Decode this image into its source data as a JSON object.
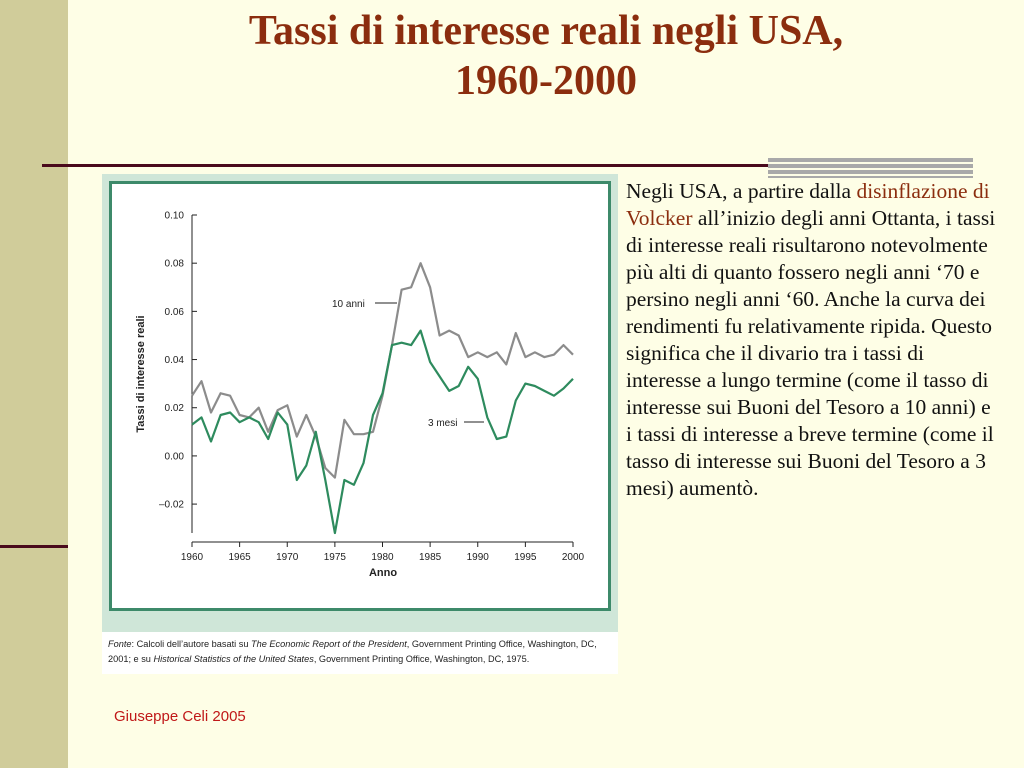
{
  "slide": {
    "title_line1": "Tassi di interesse reali negli USA,",
    "title_line2": "1960-2000",
    "body_pre": "Negli USA, a partire dalla ",
    "body_highlight": "disinflazione di Volcker",
    "body_post": " all’inizio degli anni Ottanta, i tassi di interesse reali risultarono notevolmente più alti di quanto fossero negli anni ‘70 e persino negli anni ‘60. Anche la curva dei rendimenti fu relativamente ripida. Questo significa che il divario tra i tassi di interesse a lungo termine (come il tasso di interesse sui Buoni del Tesoro a 10 anni) e i tassi di interesse a breve termine (come il tasso di interesse sui Buoni del Tesoro a 3 mesi) aumentò.",
    "footer": "Giuseppe Celi  2005",
    "colors": {
      "title": "#8b2d0e",
      "highlight": "#8b2d0e",
      "footer": "#c01818",
      "frame": "#3d8a6a",
      "series_10y": "#8c8c8c",
      "series_3m": "#2e8b5e"
    }
  },
  "source": {
    "p1": "Fonte",
    "p2": ": Calcoli dell’autore basati su ",
    "p3": "The Economic Report of the President",
    "p4": ", Government Printing Office, Washington, DC, 2001; e su ",
    "p5": "Historical Statistics of the United States",
    "p6": ", Government Printing Office, Washington, DC, 1975."
  },
  "chart_data": {
    "type": "line",
    "title": "",
    "xlabel": "Anno",
    "ylabel": "Tassi di interesse reali",
    "xlim": [
      1960,
      2000
    ],
    "ylim": [
      -0.02,
      0.1
    ],
    "y_plot_min": -0.032,
    "xticks": [
      1960,
      1965,
      1970,
      1975,
      1980,
      1985,
      1990,
      1995,
      2000
    ],
    "yticks": [
      -0.02,
      0.0,
      0.02,
      0.04,
      0.06,
      0.08,
      0.1
    ],
    "ytick_labels": [
      "–0.02",
      "0.00",
      "0.02",
      "0.04",
      "0.06",
      "0.08",
      "0.10"
    ],
    "grid": false,
    "legend": "inline labels",
    "x": [
      1960,
      1961,
      1962,
      1963,
      1964,
      1965,
      1966,
      1967,
      1968,
      1969,
      1970,
      1971,
      1972,
      1973,
      1974,
      1975,
      1976,
      1977,
      1978,
      1979,
      1980,
      1981,
      1982,
      1983,
      1984,
      1985,
      1986,
      1987,
      1988,
      1989,
      1990,
      1991,
      1992,
      1993,
      1994,
      1995,
      1996,
      1997,
      1998,
      1999,
      2000
    ],
    "series": [
      {
        "name": "10 anni",
        "values": [
          0.025,
          0.031,
          0.018,
          0.026,
          0.025,
          0.017,
          0.016,
          0.02,
          0.01,
          0.019,
          0.021,
          0.008,
          0.017,
          0.008,
          -0.005,
          -0.009,
          0.015,
          0.009,
          0.009,
          0.01,
          0.025,
          0.046,
          0.069,
          0.07,
          0.08,
          0.07,
          0.05,
          0.052,
          0.05,
          0.041,
          0.043,
          0.041,
          0.043,
          0.038,
          0.051,
          0.041,
          0.043,
          0.041,
          0.042,
          0.046,
          0.042
        ]
      },
      {
        "name": "3 mesi",
        "values": [
          0.013,
          0.016,
          0.006,
          0.017,
          0.018,
          0.014,
          0.016,
          0.014,
          0.007,
          0.018,
          0.013,
          -0.01,
          -0.004,
          0.01,
          -0.01,
          -0.032,
          -0.01,
          -0.012,
          -0.003,
          0.017,
          0.026,
          0.046,
          0.047,
          0.046,
          0.052,
          0.039,
          0.033,
          0.027,
          0.029,
          0.037,
          0.032,
          0.016,
          0.007,
          0.008,
          0.023,
          0.03,
          0.029,
          0.027,
          0.025,
          0.028,
          0.032
        ]
      }
    ]
  }
}
